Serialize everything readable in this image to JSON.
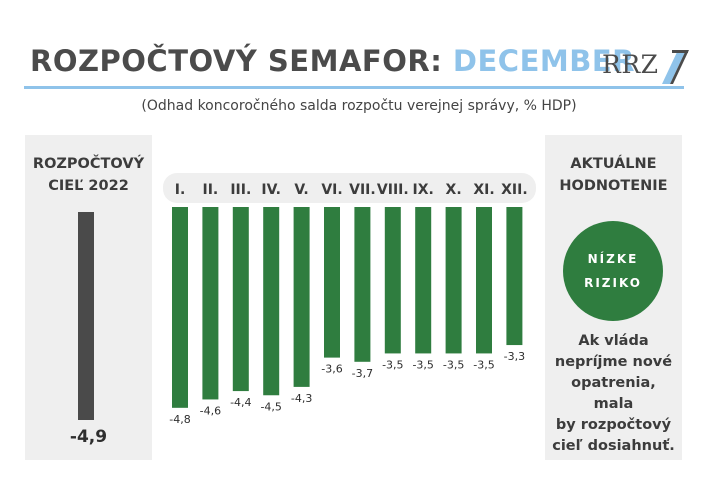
{
  "header": {
    "title_main": "ROZPOČTOVÝ SEMAFOR:",
    "title_accent": "DECEMBER",
    "subtitle": "(Odhad koncoročného salda rozpočtu verejnej správy,  % HDP)",
    "logo_text": "RRZ"
  },
  "left_panel": {
    "title_line1": "ROZPOČTOVÝ",
    "title_line2": "CIEĽ 2022",
    "target_value": "-4,9"
  },
  "right_panel": {
    "title_line1": "AKTUÁLNE",
    "title_line2": "HODNOTENIE",
    "risk_line1": "NÍZKE",
    "risk_line2": "RIZIKO",
    "assessment_lines": [
      "Ak vláda",
      "nepríjme nové",
      "opatrenia, mala",
      "by rozpočtový",
      "cieľ dosiahnuť."
    ]
  },
  "colors": {
    "bar": "#2f7d3f",
    "target_bar": "#4a4a4a",
    "accent": "#8fc3ea",
    "title": "#4b4b4b"
  },
  "chart_data": {
    "type": "bar",
    "categories": [
      "I.",
      "II.",
      "III.",
      "IV.",
      "V.",
      "VI.",
      "VII.",
      "VIII.",
      "IX.",
      "X.",
      "XI.",
      "XII."
    ],
    "values": [
      -4.8,
      -4.6,
      -4.4,
      -4.5,
      -4.3,
      -3.6,
      -3.7,
      -3.5,
      -3.5,
      -3.5,
      -3.5,
      -3.3
    ],
    "value_labels": [
      "-4,8",
      "-4,6",
      "-4,4",
      "-4,5",
      "-4,3",
      "-3,6",
      "-3,7",
      "-3,5",
      "-3,5",
      "-3,5",
      "-3,5",
      "-3,3"
    ],
    "ylim": [
      -4.9,
      0
    ],
    "grid": false,
    "title": "",
    "xlabel": "",
    "ylabel": ""
  }
}
